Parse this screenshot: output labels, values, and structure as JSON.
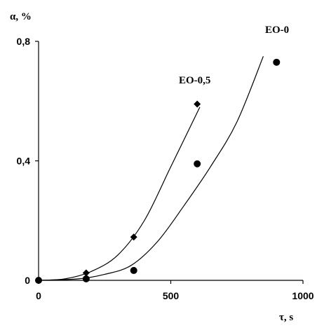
{
  "chart_data": {
    "type": "scatter",
    "xlabel": "τ, s",
    "ylabel": "α, %",
    "xlim": [
      0,
      1000
    ],
    "ylim": [
      0,
      0.8
    ],
    "x_ticks": [
      0,
      500,
      1000
    ],
    "x_tick_labels": [
      "0",
      "500",
      "1000"
    ],
    "y_ticks": [
      0,
      0.4,
      0.8
    ],
    "y_tick_labels": [
      "0",
      "0,4",
      "0,8"
    ],
    "grid": false,
    "legend": "none",
    "series": [
      {
        "name": "EO-0,5",
        "marker": "diamond",
        "points": [
          [
            0,
            0.0
          ],
          [
            180,
            0.025
          ],
          [
            360,
            0.145
          ],
          [
            600,
            0.59
          ]
        ],
        "fit_curve": [
          [
            0,
            0.0
          ],
          [
            100,
            0.005
          ],
          [
            200,
            0.03
          ],
          [
            300,
            0.085
          ],
          [
            400,
            0.2
          ],
          [
            500,
            0.38
          ],
          [
            610,
            0.58
          ]
        ]
      },
      {
        "name": "EO-0",
        "marker": "circle",
        "points": [
          [
            0,
            0.0
          ],
          [
            180,
            0.005
          ],
          [
            360,
            0.033
          ],
          [
            600,
            0.39
          ],
          [
            900,
            0.73
          ]
        ],
        "fit_curve": [
          [
            0,
            0.0
          ],
          [
            150,
            0.005
          ],
          [
            250,
            0.02
          ],
          [
            350,
            0.05
          ],
          [
            450,
            0.13
          ],
          [
            550,
            0.25
          ],
          [
            650,
            0.38
          ],
          [
            750,
            0.53
          ],
          [
            850,
            0.75
          ]
        ]
      }
    ]
  }
}
